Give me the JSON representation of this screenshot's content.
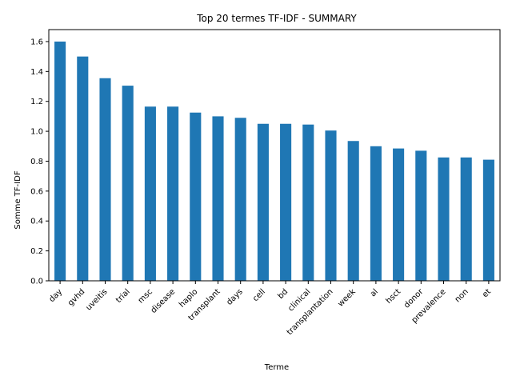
{
  "chart_data": {
    "type": "bar",
    "title": "Top 20 termes TF-IDF - SUMMARY",
    "xlabel": "Terme",
    "ylabel": "Somme TF-IDF",
    "categories": [
      "day",
      "gvhd",
      "uveitis",
      "trial",
      "msc",
      "disease",
      "haplo",
      "transplant",
      "days",
      "cell",
      "bd",
      "clinical",
      "transplantation",
      "week",
      "al",
      "hsct",
      "donor",
      "prevalence",
      "non",
      "et"
    ],
    "values": [
      1.6,
      1.5,
      1.355,
      1.305,
      1.165,
      1.165,
      1.125,
      1.1,
      1.09,
      1.05,
      1.05,
      1.045,
      1.005,
      0.935,
      0.9,
      0.885,
      0.87,
      0.825,
      0.825,
      0.81
    ],
    "ylim": [
      0,
      1.68
    ],
    "yticks": [
      "0.0",
      "0.2",
      "0.4",
      "0.6",
      "0.8",
      "1.0",
      "1.2",
      "1.4",
      "1.6"
    ],
    "grid": false,
    "legend": "none",
    "bar_color": "#1f77b4"
  }
}
